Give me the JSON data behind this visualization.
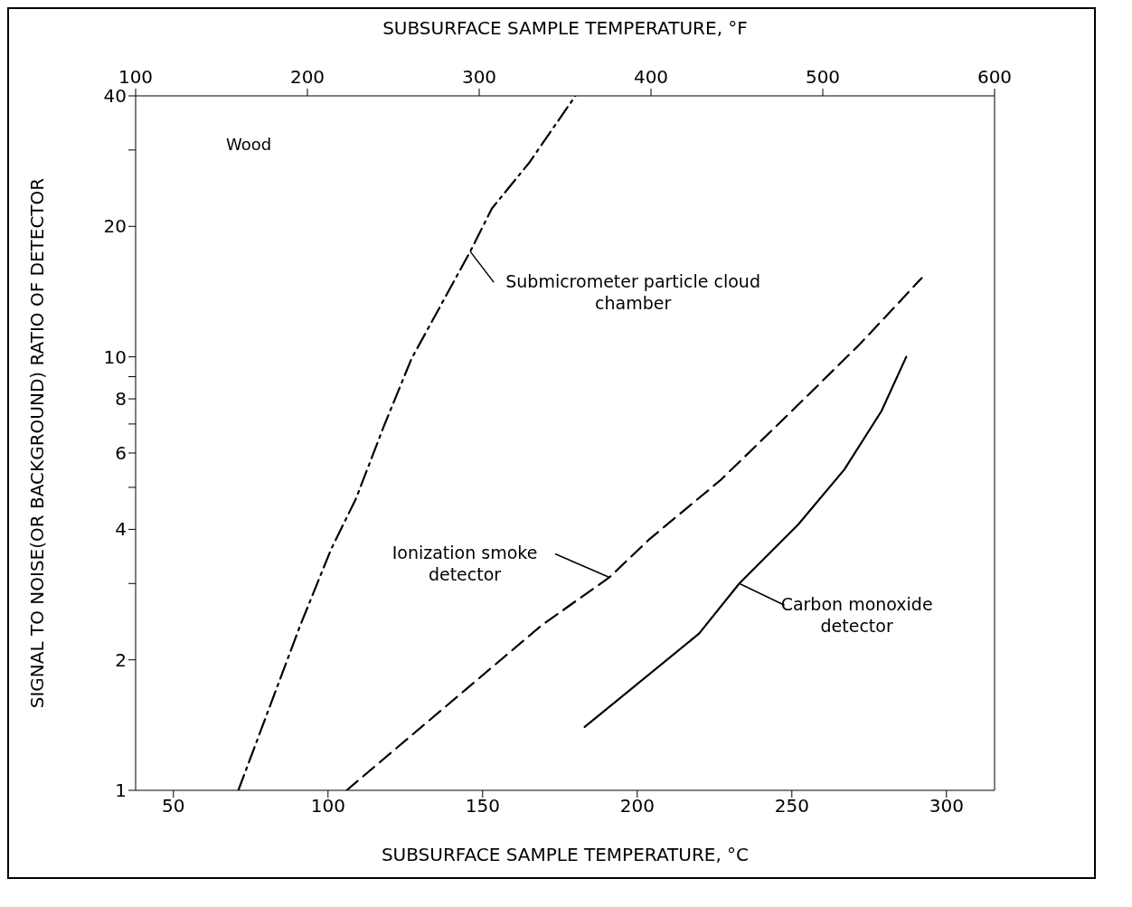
{
  "chart_data": {
    "type": "line",
    "xlabel": "SUBSURFACE SAMPLE TEMPERATURE, °C",
    "x2label": "SUBSURFACE SAMPLE TEMPERATURE, °F",
    "ylabel": "SIGNAL TO NOISE(OR BACKGROUND) RATIO OF DETECTOR",
    "annotations": [
      "Wood"
    ],
    "xlim": [
      37.78,
      315.56
    ],
    "xticks": [
      50,
      100,
      150,
      200,
      250,
      300
    ],
    "x2lim": [
      100,
      600
    ],
    "x2ticks": [
      100,
      200,
      300,
      400,
      500,
      600
    ],
    "ylim": [
      1,
      40
    ],
    "log": "y",
    "yticks": [
      1,
      2,
      {
        "value": 3,
        "label": null
      },
      4,
      {
        "value": 5,
        "label": null
      },
      6,
      {
        "value": 7,
        "label": null
      },
      8,
      {
        "value": 9,
        "label": null
      },
      10,
      20,
      {
        "value": 30,
        "label": null
      },
      40
    ],
    "series": [
      {
        "name": "Submicrometer particle cloud chamber",
        "color": "#000000",
        "line_style": "dotted",
        "x": [
          71,
          91,
          101,
          109,
          118,
          127,
          146,
          153,
          165,
          180
        ],
        "values": [
          1,
          2.4,
          3.6,
          4.7,
          6.9,
          9.9,
          17.5,
          22,
          28,
          40
        ]
      },
      {
        "name": "Ionization smoke detector",
        "color": "#000000",
        "line_style": "dashed",
        "x": [
          106,
          169,
          191,
          204,
          227,
          250,
          272,
          292
        ],
        "values": [
          1,
          2.4,
          3.1,
          3.8,
          5.2,
          7.5,
          10.7,
          15.2
        ]
      },
      {
        "name": "Carbon monoxide detector",
        "color": "#000000",
        "line_style": "solid",
        "x": [
          183,
          220,
          233,
          252,
          267,
          279,
          287
        ],
        "values": [
          1.4,
          2.3,
          3,
          4.1,
          5.5,
          7.5,
          10
        ]
      }
    ]
  }
}
